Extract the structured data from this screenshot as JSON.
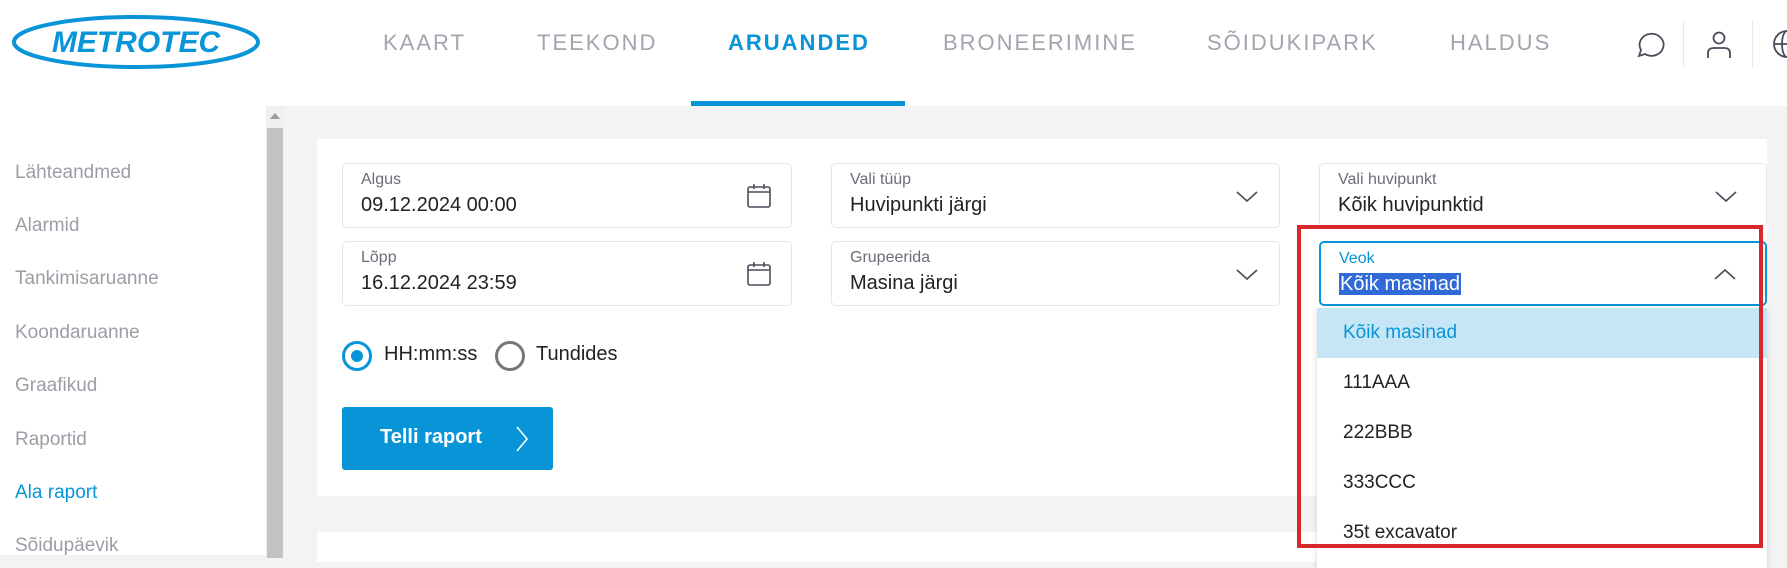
{
  "header": {
    "logo_text": "METROTEC",
    "nav": [
      {
        "label": "KAART"
      },
      {
        "label": "TEEKOND"
      },
      {
        "label": "ARUANDED",
        "active": true
      },
      {
        "label": "BRONEERIMINE"
      },
      {
        "label": "SÕIDUKIPARK"
      },
      {
        "label": "HALDUS"
      }
    ],
    "icons": [
      "chat-icon",
      "user-icon",
      "globe-icon"
    ]
  },
  "sidebar": {
    "items": [
      {
        "label": "Lähteandmed"
      },
      {
        "label": "Alarmid"
      },
      {
        "label": "Tankimisaruanne"
      },
      {
        "label": "Koondaruanne"
      },
      {
        "label": "Graafikud"
      },
      {
        "label": "Raportid"
      },
      {
        "label": "Ala raport",
        "active": true
      },
      {
        "label": "Sõidupäevik"
      }
    ]
  },
  "form": {
    "start": {
      "label": "Algus",
      "value": "09.12.2024 00:00"
    },
    "end": {
      "label": "Lõpp",
      "value": "16.12.2024 23:59"
    },
    "type": {
      "label": "Vali tüüp",
      "value": "Huvipunkti järgi"
    },
    "group": {
      "label": "Grupeerida",
      "value": "Masina järgi"
    },
    "poi": {
      "label": "Vali huvipunkt",
      "value": "Kõik huvipunktid"
    },
    "vehicle": {
      "label": "Veok",
      "value": "Kõik masinad",
      "options": [
        "Kõik masinad",
        "111AAA",
        "222BBB",
        "333CCC",
        "35t excavator"
      ]
    },
    "radios": [
      {
        "label": "HH:mm:ss",
        "checked": true
      },
      {
        "label": "Tundides",
        "checked": false
      }
    ],
    "submit_label": "Telli raport"
  },
  "colors": {
    "accent": "#0895d8",
    "highlight": "#d9272e"
  }
}
